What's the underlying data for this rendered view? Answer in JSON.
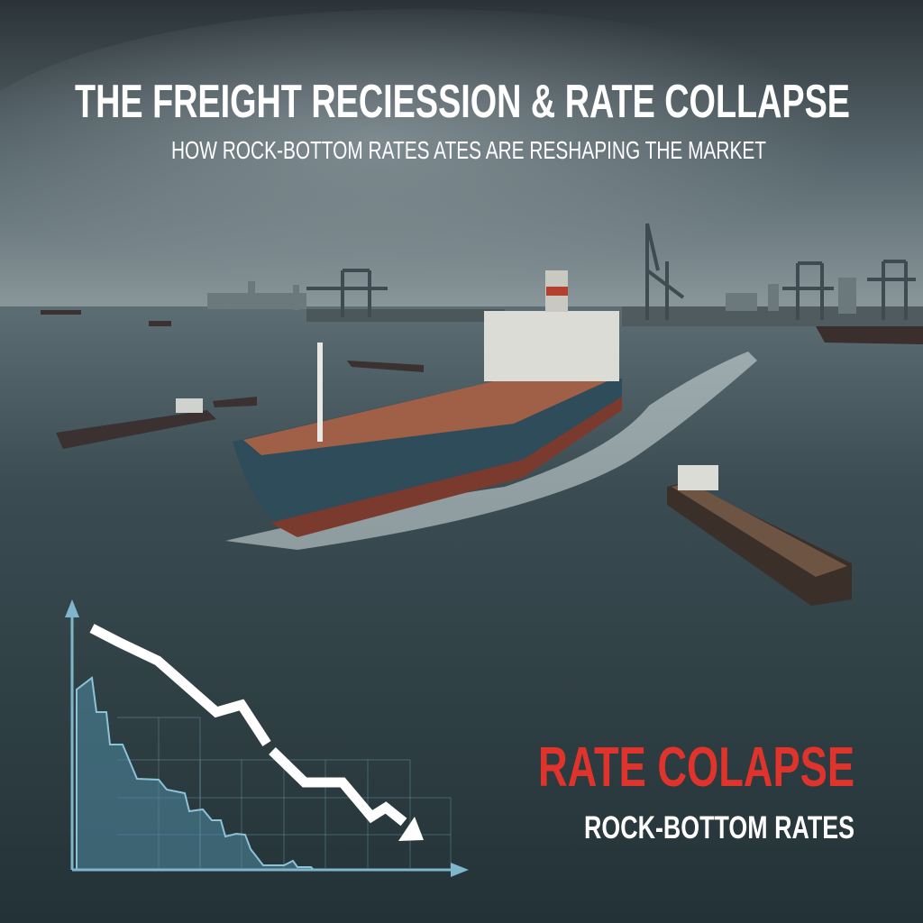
{
  "poster": {
    "title": "THE FREIGHT RECIESSION & RATE COLLAPSE",
    "subtitle": "HOW ROCK-BOTTOM RATES ATES ARE RESHAPING THE MARKET",
    "callout_heading": "RATE COLAPSE",
    "callout_subheading": "ROCK-BOTTOM RATES"
  },
  "colors": {
    "callout_heading": "#e0332b",
    "text": "#ffffff",
    "chart_axis": "#7fb6cc",
    "chart_fill": "#4f8aa3",
    "sea": "#2c3d43",
    "sky": "#55646b"
  },
  "icons": [
    "downward-trend-arrow-icon",
    "declining-area-chart-icon"
  ]
}
